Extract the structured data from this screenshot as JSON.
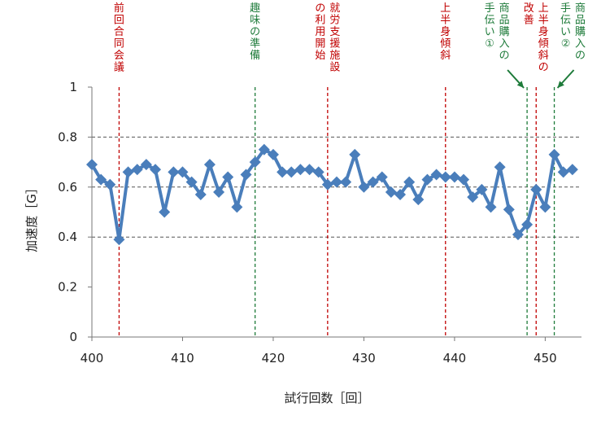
{
  "chart_data": {
    "type": "line",
    "xlabel": "試行回数［回］",
    "ylabel": "加速度［G］",
    "xlim": [
      400,
      454
    ],
    "ylim": [
      0,
      1
    ],
    "x_ticks": [
      400,
      410,
      420,
      430,
      440,
      450
    ],
    "y_ticks": [
      0,
      0.2,
      0.4,
      0.6,
      0.8,
      1
    ],
    "y_tick_labels": [
      "0",
      "0.2",
      "0.4",
      "0.6",
      "0.8",
      "1"
    ],
    "horizontal_dashed_gridlines": [
      0.4,
      0.6,
      0.8
    ],
    "series_color": "#4a7ebb",
    "marker": "diamond",
    "x": [
      400,
      401,
      402,
      403,
      404,
      405,
      406,
      407,
      408,
      409,
      410,
      411,
      412,
      413,
      414,
      415,
      416,
      417,
      418,
      419,
      420,
      421,
      422,
      423,
      424,
      425,
      426,
      427,
      428,
      429,
      430,
      431,
      432,
      433,
      434,
      435,
      436,
      437,
      438,
      439,
      440,
      441,
      442,
      443,
      444,
      445,
      446,
      447,
      448,
      449,
      450,
      451,
      452,
      453
    ],
    "values": [
      0.69,
      0.63,
      0.61,
      0.39,
      0.66,
      0.67,
      0.69,
      0.67,
      0.5,
      0.66,
      0.66,
      0.62,
      0.57,
      0.69,
      0.58,
      0.64,
      0.52,
      0.65,
      0.7,
      0.75,
      0.73,
      0.66,
      0.66,
      0.67,
      0.67,
      0.66,
      0.61,
      0.62,
      0.62,
      0.73,
      0.6,
      0.62,
      0.64,
      0.58,
      0.57,
      0.62,
      0.55,
      0.63,
      0.65,
      0.64,
      0.64,
      0.63,
      0.56,
      0.59,
      0.52,
      0.68,
      0.51,
      0.41,
      0.45,
      0.59,
      0.52,
      0.73,
      0.66,
      0.67
    ],
    "events": [
      {
        "x": 403,
        "label": "前回合同会議",
        "color": "#c00000",
        "columns": [
          "前回合同会議"
        ]
      },
      {
        "x": 418,
        "label": "趣味の準備",
        "color": "#1e7b3a",
        "columns": [
          "趣味の準備"
        ]
      },
      {
        "x": 426,
        "label": "就労支援施設の利用開始",
        "color": "#c00000",
        "columns": [
          "就労支援施設",
          "の利用開始"
        ]
      },
      {
        "x": 439,
        "label": "上半身傾斜",
        "color": "#c00000",
        "columns": [
          "上半身傾斜"
        ]
      },
      {
        "x": 448,
        "label": "商品購入の手伝い①",
        "color": "#1e7b3a",
        "columns": [
          "商品購入の",
          "手伝い①"
        ],
        "arrow": "left"
      },
      {
        "x": 449,
        "label": "上半身傾斜の改善",
        "color": "#c00000",
        "columns": [
          "上半身傾斜の",
          "改善"
        ]
      },
      {
        "x": 451,
        "label": "商品購入の手伝い②",
        "color": "#1e7b3a",
        "columns": [
          "商品購入の",
          "手伝い②"
        ],
        "arrow": "right"
      }
    ]
  }
}
